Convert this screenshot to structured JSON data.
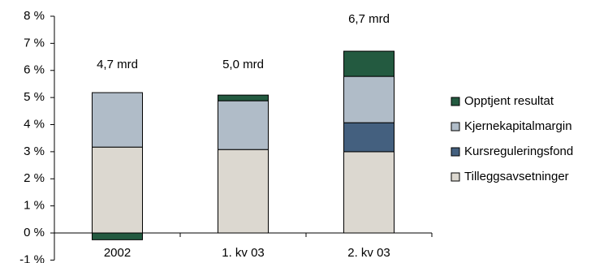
{
  "chart_data": {
    "type": "stacked_bar",
    "categories": [
      "2002",
      "1. kv 03",
      "2. kv 03"
    ],
    "annotations": [
      "4,7 mrd",
      "5,0 mrd",
      "6,7 mrd"
    ],
    "series": [
      {
        "name": "Tilleggsavsetninger",
        "color": "#dcd8d0",
        "values": [
          3.17,
          3.08,
          3.0
        ]
      },
      {
        "name": "Kursreguleringsfond",
        "color": "#44607f",
        "values": [
          0,
          0,
          1.07
        ]
      },
      {
        "name": "Kjernekapitalmargin",
        "color": "#b0bcc8",
        "values": [
          2.01,
          1.8,
          1.71
        ]
      },
      {
        "name": "Opptjent resultat",
        "color": "#235a40",
        "values": [
          -0.25,
          0.21,
          0.93
        ]
      }
    ],
    "ylim": [
      -1,
      8
    ],
    "yticks": [
      {
        "value": -1,
        "label": "-1 %"
      },
      {
        "value": 0,
        "label": "0 %"
      },
      {
        "value": 1,
        "label": "1 %"
      },
      {
        "value": 2,
        "label": "2 %"
      },
      {
        "value": 3,
        "label": "3 %"
      },
      {
        "value": 4,
        "label": "4 %"
      },
      {
        "value": 5,
        "label": "5 %"
      },
      {
        "value": 6,
        "label": "6 %"
      },
      {
        "value": 7,
        "label": "7 %"
      },
      {
        "value": 8,
        "label": "8 %"
      }
    ],
    "legend": "right"
  }
}
